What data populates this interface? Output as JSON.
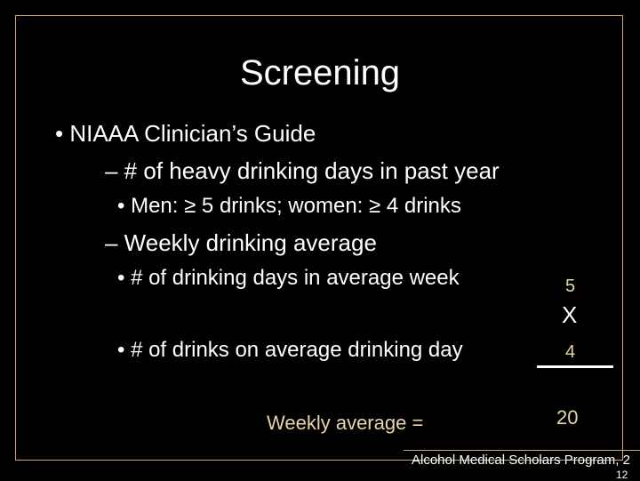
{
  "slide": {
    "title": "Screening",
    "bullets": {
      "l1": "• NIAAA Clinician’s Guide",
      "sub_a": "– # of heavy drinking days in past year",
      "sub_a_dot": "• Men: ≥ 5 drinks; women: ≥ 4 drinks",
      "sub_b": "– Weekly drinking average",
      "sub_b_dot1": "• # of drinking days in average week",
      "sub_b_dot2": "• # of drinks on average drinking day"
    },
    "calc": {
      "days": "5",
      "times": "X",
      "drinks": "4",
      "result": "20",
      "weekly_label": "Weekly average ="
    },
    "footer": {
      "text": "Alcohol Medical Scholars Program, 2",
      "page": "12"
    }
  }
}
